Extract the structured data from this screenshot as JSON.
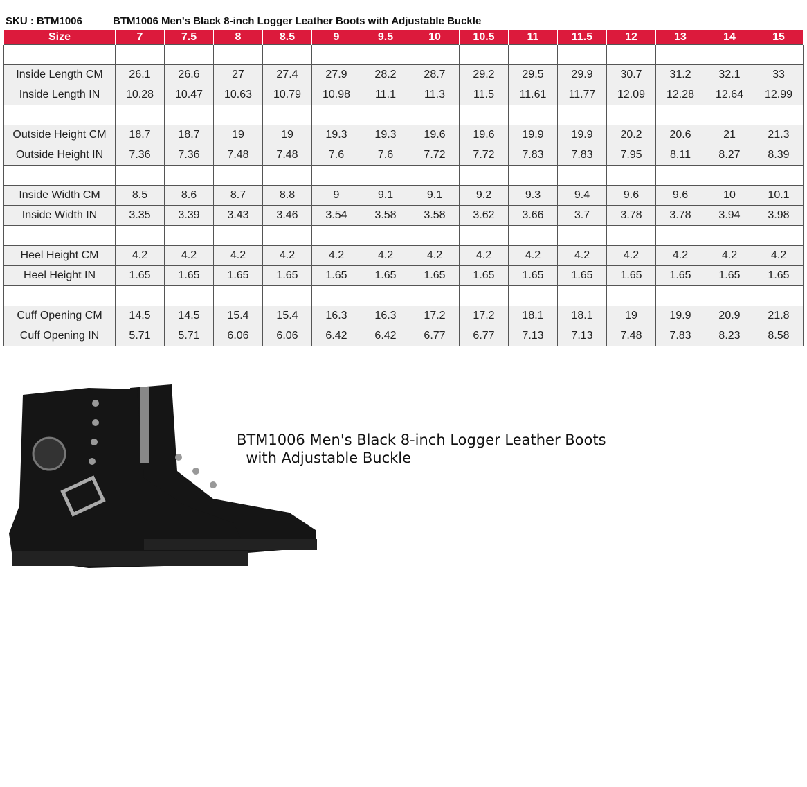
{
  "header": {
    "sku": "SKU : BTM1006",
    "title": "BTM1006 Men's Black 8-inch Logger Leather Boots with Adjustable Buckle"
  },
  "colors": {
    "header_bg": "#dc1a3c",
    "row_bg": "#efefef"
  },
  "table": {
    "size_label": "Size",
    "sizes": [
      "7",
      "7.5",
      "8",
      "8.5",
      "9",
      "9.5",
      "10",
      "10.5",
      "11",
      "11.5",
      "12",
      "13",
      "14",
      "15"
    ],
    "rows": [
      {
        "label": "",
        "values": []
      },
      {
        "label": "Inside Length CM",
        "values": [
          "26.1",
          "26.6",
          "27",
          "27.4",
          "27.9",
          "28.2",
          "28.7",
          "29.2",
          "29.5",
          "29.9",
          "30.7",
          "31.2",
          "32.1",
          "33"
        ]
      },
      {
        "label": "Inside Length IN",
        "values": [
          "10.28",
          "10.47",
          "10.63",
          "10.79",
          "10.98",
          "11.1",
          "11.3",
          "11.5",
          "11.61",
          "11.77",
          "12.09",
          "12.28",
          "12.64",
          "12.99"
        ]
      },
      {
        "label": "",
        "values": []
      },
      {
        "label": "Outside Height CM",
        "values": [
          "18.7",
          "18.7",
          "19",
          "19",
          "19.3",
          "19.3",
          "19.6",
          "19.6",
          "19.9",
          "19.9",
          "20.2",
          "20.6",
          "21",
          "21.3"
        ]
      },
      {
        "label": "Outside Height IN",
        "values": [
          "7.36",
          "7.36",
          "7.48",
          "7.48",
          "7.6",
          "7.6",
          "7.72",
          "7.72",
          "7.83",
          "7.83",
          "7.95",
          "8.11",
          "8.27",
          "8.39"
        ]
      },
      {
        "label": "",
        "values": []
      },
      {
        "label": "Inside Width CM",
        "values": [
          "8.5",
          "8.6",
          "8.7",
          "8.8",
          "9",
          "9.1",
          "9.1",
          "9.2",
          "9.3",
          "9.4",
          "9.6",
          "9.6",
          "10",
          "10.1"
        ]
      },
      {
        "label": "Inside Width IN",
        "values": [
          "3.35",
          "3.39",
          "3.43",
          "3.46",
          "3.54",
          "3.58",
          "3.58",
          "3.62",
          "3.66",
          "3.7",
          "3.78",
          "3.78",
          "3.94",
          "3.98"
        ]
      },
      {
        "label": "",
        "values": []
      },
      {
        "label": "Heel Height CM",
        "values": [
          "4.2",
          "4.2",
          "4.2",
          "4.2",
          "4.2",
          "4.2",
          "4.2",
          "4.2",
          "4.2",
          "4.2",
          "4.2",
          "4.2",
          "4.2",
          "4.2"
        ]
      },
      {
        "label": "Heel Height IN",
        "values": [
          "1.65",
          "1.65",
          "1.65",
          "1.65",
          "1.65",
          "1.65",
          "1.65",
          "1.65",
          "1.65",
          "1.65",
          "1.65",
          "1.65",
          "1.65",
          "1.65"
        ]
      },
      {
        "label": "",
        "values": []
      },
      {
        "label": "Cuff Opening CM",
        "values": [
          "14.5",
          "14.5",
          "15.4",
          "15.4",
          "16.3",
          "16.3",
          "17.2",
          "17.2",
          "18.1",
          "18.1",
          "19",
          "19.9",
          "20.9",
          "21.8"
        ]
      },
      {
        "label": "Cuff Opening IN",
        "values": [
          "5.71",
          "5.71",
          "6.06",
          "6.06",
          "6.42",
          "6.42",
          "6.77",
          "6.77",
          "7.13",
          "7.13",
          "7.48",
          "7.83",
          "8.23",
          "8.58"
        ]
      }
    ]
  },
  "product": {
    "caption_line1": "BTM1006 Men's Black 8-inch Logger Leather Boots",
    "caption_line2": "  with Adjustable Buckle"
  }
}
